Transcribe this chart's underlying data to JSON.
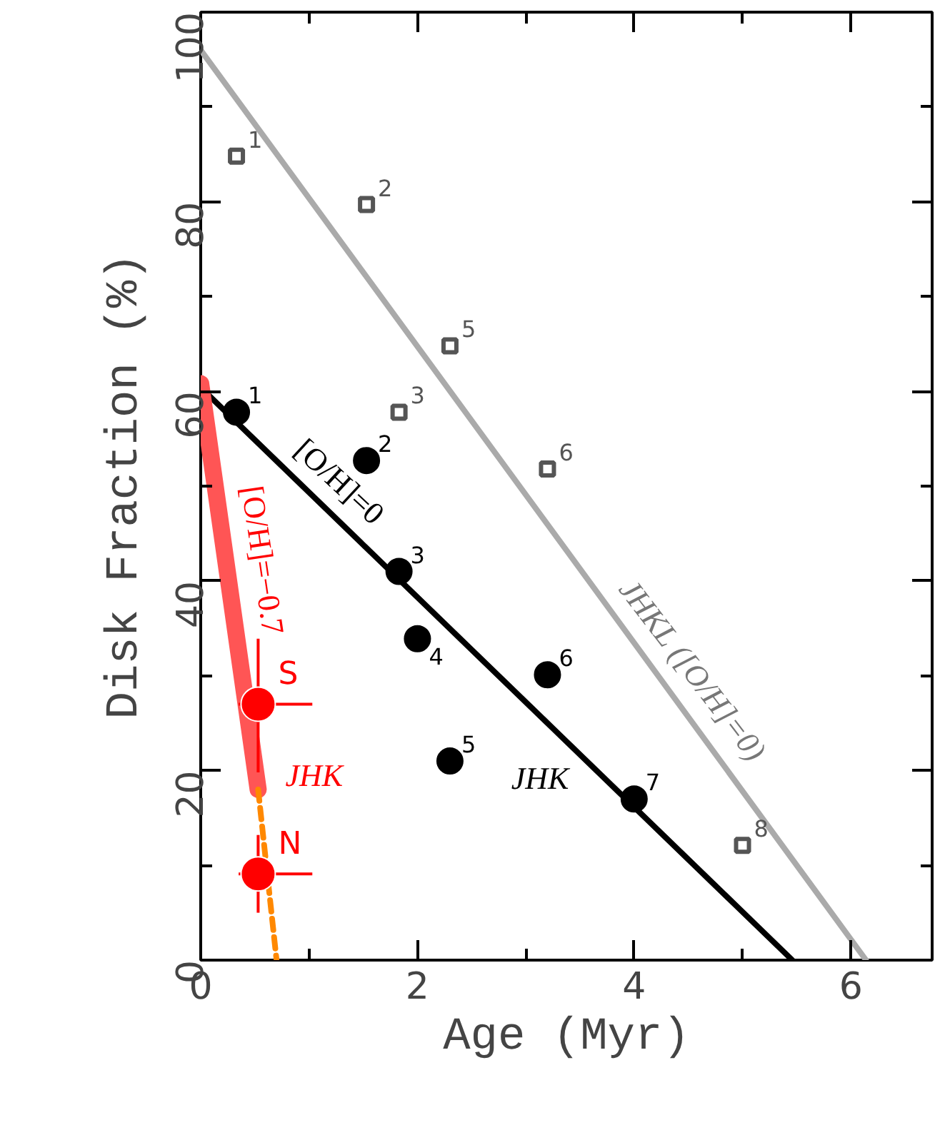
{
  "chart_data": {
    "type": "scatter",
    "xlabel": "Age (Myr)",
    "ylabel": "Disk Fraction (%)",
    "xlim": [
      0,
      6.75
    ],
    "ylim": [
      0,
      100
    ],
    "xticks": [
      0,
      2,
      4,
      6
    ],
    "yticks": [
      0,
      20,
      40,
      60,
      80,
      100
    ],
    "grid": false,
    "series": [
      {
        "type": "line",
        "color": "#aaaaaa",
        "x": [
          0,
          6.14
        ],
        "values": [
          96,
          0
        ]
      },
      {
        "type": "line",
        "color": "#000000",
        "x": [
          0,
          5.46
        ],
        "values": [
          60.4,
          0
        ]
      },
      {
        "type": "line",
        "color": "#ff5555",
        "x": [
          0,
          0.53
        ],
        "values": [
          60.8,
          18
        ]
      },
      {
        "type": "line",
        "color": "#ff8800",
        "line_style": "dashed",
        "x": [
          0.53,
          0.7
        ],
        "values": [
          18,
          0
        ]
      },
      {
        "marker": "square",
        "color": "#555555",
        "x": [
          0.33,
          1.53,
          1.83,
          2.3,
          3.2,
          5.0
        ],
        "values": [
          84.8,
          79.7,
          57.8,
          64.8,
          51.8,
          12.1
        ]
      },
      {
        "marker": "circle",
        "color": "#000000",
        "x": [
          0.33,
          1.53,
          1.83,
          2.0,
          2.3,
          3.2,
          4.0
        ],
        "values": [
          57.8,
          52.7,
          41,
          33.9,
          21,
          30.1,
          17
        ]
      },
      {
        "marker": "circle",
        "color": "#ff0000",
        "x": [
          0.53,
          0.53
        ],
        "values": [
          27,
          9.1
        ],
        "errors": [
          [
            19.8,
            33.9
          ],
          [
            5.0,
            13.2
          ]
        ],
        "xerrors": [
          [
            0.35,
            1.03
          ],
          [
            0.35,
            1.03
          ]
        ]
      }
    ],
    "annotations": [
      "[O/H]=0",
      "[O/H]=−0.7",
      "JHK",
      "JHK",
      "JHKL ([O/H]=0)",
      {
        "text": "1",
        "x": 0.33,
        "y": 84.8
      },
      {
        "text": "2",
        "x": 1.53,
        "y": 79.7
      },
      {
        "text": "3",
        "x": 1.83,
        "y": 57.8
      },
      {
        "text": "5",
        "x": 2.3,
        "y": 64.8
      },
      {
        "text": "6",
        "x": 3.2,
        "y": 51.8
      },
      {
        "text": "8",
        "x": 5.0,
        "y": 12.1
      },
      {
        "text": "1",
        "x": 0.33,
        "y": 57.8
      },
      {
        "text": "2",
        "x": 1.53,
        "y": 52.7
      },
      {
        "text": "3",
        "x": 1.83,
        "y": 41
      },
      {
        "text": "4",
        "x": 2.0,
        "y": 33.9
      },
      {
        "text": "5",
        "x": 2.3,
        "y": 21
      },
      {
        "text": "6",
        "x": 3.2,
        "y": 30.1
      },
      {
        "text": "7",
        "x": 4.0,
        "y": 17
      },
      {
        "text": "S",
        "x": 0.53,
        "y": 27
      },
      {
        "text": "N",
        "x": 0.53,
        "y": 9.1
      }
    ]
  }
}
